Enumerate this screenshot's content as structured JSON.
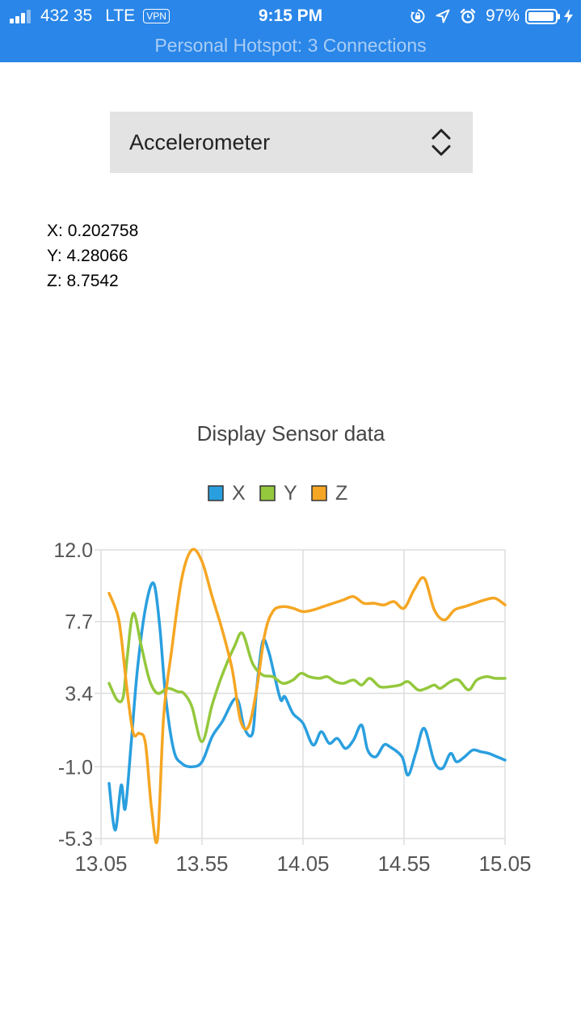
{
  "status_bar": {
    "carrier": "432 35",
    "network": "LTE",
    "vpn": "VPN",
    "time": "9:15 PM",
    "battery_percent": "97%",
    "battery_level": 0.97,
    "hotspot_banner": "Personal Hotspot: 3 Connections",
    "icons": [
      "signal-icon",
      "orientation-lock-icon",
      "location-arrow-icon",
      "alarm-icon",
      "battery-icon",
      "charging-bolt-icon"
    ],
    "background_color": "#2a86e8"
  },
  "sensor_select": {
    "selected": "Accelerometer",
    "icon": "chevron-up-down-icon"
  },
  "readings": {
    "x_label": "X: ",
    "x_value": "0.202758",
    "y_label": "Y: ",
    "y_value": "4.28066",
    "z_label": "Z: ",
    "z_value": "8.7542"
  },
  "chart_data": {
    "type": "line",
    "title": "Display Sensor data",
    "xlabel": "",
    "ylabel": "",
    "xlim": [
      13.05,
      15.05
    ],
    "ylim": [
      -5.3,
      12.0
    ],
    "x_ticks": [
      "13.05",
      "13.55",
      "14.05",
      "14.55",
      "15.05"
    ],
    "y_ticks": [
      "12.0",
      "7.7",
      "3.4",
      "-1.0",
      "-5.3"
    ],
    "grid": true,
    "legend_position": "top",
    "series": [
      {
        "name": "X",
        "color": "#2a9fdf",
        "x": [
          13.09,
          13.12,
          13.15,
          13.17,
          13.2,
          13.23,
          13.27,
          13.31,
          13.34,
          13.37,
          13.41,
          13.45,
          13.5,
          13.55,
          13.6,
          13.65,
          13.72,
          13.76,
          13.8,
          13.82,
          13.85,
          13.88,
          13.91,
          13.94,
          13.96,
          14.0,
          14.05,
          14.1,
          14.14,
          14.18,
          14.22,
          14.26,
          14.3,
          14.34,
          14.37,
          14.41,
          14.45,
          14.48,
          14.54,
          14.57,
          14.61,
          14.65,
          14.7,
          14.74,
          14.78,
          14.81,
          14.85,
          14.89,
          14.93,
          14.97,
          15.01,
          15.05
        ],
        "y": [
          -2.0,
          -4.8,
          -2.1,
          -3.5,
          0.5,
          4.8,
          8.5,
          10.0,
          7.5,
          3.2,
          0.0,
          -0.8,
          -1.0,
          -0.7,
          0.8,
          1.7,
          3.1,
          1.3,
          1.0,
          3.6,
          6.5,
          5.9,
          4.4,
          3.0,
          3.2,
          2.2,
          1.6,
          0.3,
          1.1,
          0.4,
          0.7,
          0.1,
          0.6,
          1.5,
          0.0,
          -0.4,
          0.3,
          0.2,
          -0.4,
          -1.5,
          -0.1,
          1.3,
          -0.7,
          -1.1,
          -0.2,
          -0.7,
          -0.4,
          0.0,
          -0.1,
          -0.2,
          -0.4,
          -0.6
        ]
      },
      {
        "name": "Y",
        "color": "#94c83d",
        "x": [
          13.09,
          13.13,
          13.16,
          13.18,
          13.21,
          13.25,
          13.29,
          13.33,
          13.38,
          13.43,
          13.46,
          13.5,
          13.55,
          13.6,
          13.65,
          13.71,
          13.75,
          13.8,
          13.85,
          13.9,
          13.95,
          14.0,
          14.04,
          14.08,
          14.13,
          14.17,
          14.21,
          14.25,
          14.3,
          14.34,
          14.38,
          14.43,
          14.48,
          14.53,
          14.57,
          14.62,
          14.66,
          14.7,
          14.73,
          14.78,
          14.82,
          14.87,
          14.91,
          14.96,
          15.0,
          15.05
        ],
        "y": [
          4.0,
          3.0,
          3.2,
          5.6,
          8.2,
          6.2,
          4.2,
          3.4,
          3.7,
          3.5,
          3.4,
          2.6,
          0.5,
          2.7,
          4.5,
          6.2,
          7.0,
          5.2,
          4.5,
          4.4,
          4.0,
          4.2,
          4.6,
          4.4,
          4.3,
          4.4,
          4.1,
          4.0,
          4.2,
          3.9,
          4.3,
          3.8,
          3.8,
          3.9,
          4.1,
          3.6,
          3.7,
          3.9,
          3.7,
          4.1,
          4.2,
          3.6,
          4.2,
          4.4,
          4.3,
          4.3
        ]
      },
      {
        "name": "Z",
        "color": "#f5a623",
        "x": [
          13.09,
          13.13,
          13.15,
          13.18,
          13.21,
          13.24,
          13.27,
          13.3,
          13.33,
          13.36,
          13.4,
          13.45,
          13.5,
          13.55,
          13.6,
          13.65,
          13.7,
          13.74,
          13.78,
          13.82,
          13.86,
          13.9,
          13.95,
          14.0,
          14.05,
          14.1,
          14.15,
          14.2,
          14.25,
          14.3,
          14.35,
          14.4,
          14.45,
          14.5,
          14.55,
          14.6,
          14.65,
          14.7,
          14.75,
          14.8,
          14.85,
          14.9,
          14.95,
          15.0,
          15.05
        ],
        "y": [
          9.4,
          8.2,
          6.8,
          3.5,
          1.0,
          1.0,
          0.4,
          -3.5,
          -5.3,
          2.0,
          6.0,
          10.3,
          12.0,
          11.3,
          9.2,
          7.2,
          4.8,
          1.8,
          1.4,
          3.6,
          6.9,
          8.3,
          8.6,
          8.5,
          8.3,
          8.4,
          8.6,
          8.8,
          9.0,
          9.2,
          8.8,
          8.8,
          8.7,
          8.9,
          8.5,
          9.6,
          10.3,
          8.4,
          7.8,
          8.4,
          8.6,
          8.8,
          9.0,
          9.1,
          8.7
        ]
      }
    ]
  }
}
